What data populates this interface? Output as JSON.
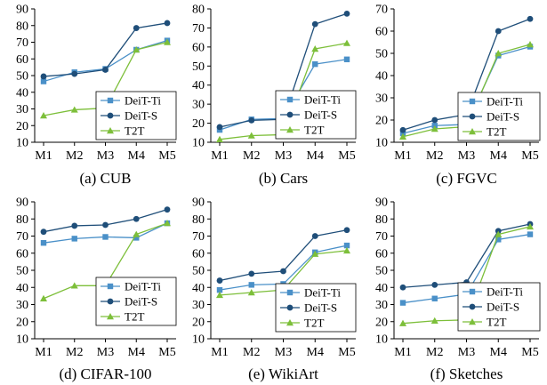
{
  "figure": {
    "panels_count": 6
  },
  "chart_data": [
    {
      "type": "line",
      "caption": "(a) CUB",
      "categories": [
        "M1",
        "M2",
        "M3",
        "M4",
        "M5"
      ],
      "ylim": [
        10,
        90
      ],
      "yticks": [
        10,
        20,
        30,
        40,
        50,
        60,
        70,
        80,
        90
      ],
      "legend": "bottom-right",
      "series": [
        {
          "name": "DeiT-Ti",
          "color": "#4a90c8",
          "marker": "square",
          "values": [
            46.5,
            52.0,
            54.0,
            65.5,
            71.0
          ]
        },
        {
          "name": "DeiT-S",
          "color": "#1f4e79",
          "marker": "circle",
          "values": [
            49.5,
            51.0,
            53.5,
            78.5,
            81.5
          ]
        },
        {
          "name": "T2T",
          "color": "#7dbf3a",
          "marker": "triangle",
          "values": [
            26.0,
            29.5,
            30.5,
            65.5,
            70.0
          ]
        }
      ]
    },
    {
      "type": "line",
      "caption": "(b) Cars",
      "categories": [
        "M1",
        "M2",
        "M3",
        "M4",
        "M5"
      ],
      "ylim": [
        10,
        80
      ],
      "yticks": [
        10,
        20,
        30,
        40,
        50,
        60,
        70,
        80
      ],
      "legend": "middle-right",
      "series": [
        {
          "name": "DeiT-Ti",
          "color": "#4a90c8",
          "marker": "square",
          "values": [
            16.5,
            22.0,
            22.5,
            51.0,
            53.5
          ]
        },
        {
          "name": "DeiT-S",
          "color": "#1f4e79",
          "marker": "circle",
          "values": [
            18.0,
            21.5,
            22.0,
            72.0,
            77.5
          ]
        },
        {
          "name": "T2T",
          "color": "#7dbf3a",
          "marker": "triangle",
          "values": [
            11.5,
            13.5,
            14.0,
            59.0,
            62.0
          ]
        }
      ]
    },
    {
      "type": "line",
      "caption": "(c) FGVC",
      "categories": [
        "M1",
        "M2",
        "M3",
        "M4",
        "M5"
      ],
      "ylim": [
        10,
        70
      ],
      "yticks": [
        10,
        20,
        30,
        40,
        50,
        60,
        70
      ],
      "legend": "bottom-right",
      "series": [
        {
          "name": "DeiT-Ti",
          "color": "#4a90c8",
          "marker": "square",
          "values": [
            14.0,
            17.5,
            18.0,
            49.0,
            53.0
          ]
        },
        {
          "name": "DeiT-S",
          "color": "#1f4e79",
          "marker": "circle",
          "values": [
            15.5,
            20.0,
            22.5,
            60.0,
            65.5
          ]
        },
        {
          "name": "T2T",
          "color": "#7dbf3a",
          "marker": "triangle",
          "values": [
            12.5,
            16.0,
            17.0,
            50.0,
            54.0
          ]
        }
      ]
    },
    {
      "type": "line",
      "caption": "(d) CIFAR-100",
      "categories": [
        "M1",
        "M2",
        "M3",
        "M4",
        "M5"
      ],
      "ylim": [
        10,
        90
      ],
      "yticks": [
        10,
        20,
        30,
        40,
        50,
        60,
        70,
        80,
        90
      ],
      "legend": "bottom-right",
      "series": [
        {
          "name": "DeiT-Ti",
          "color": "#4a90c8",
          "marker": "square",
          "values": [
            66.0,
            68.5,
            69.5,
            69.0,
            77.5
          ]
        },
        {
          "name": "DeiT-S",
          "color": "#1f4e79",
          "marker": "circle",
          "values": [
            72.5,
            76.0,
            76.5,
            80.0,
            85.5
          ]
        },
        {
          "name": "T2T",
          "color": "#7dbf3a",
          "marker": "triangle",
          "values": [
            33.5,
            41.0,
            41.0,
            71.0,
            77.5
          ]
        }
      ]
    },
    {
      "type": "line",
      "caption": "(e) WikiArt",
      "categories": [
        "M1",
        "M2",
        "M3",
        "M4",
        "M5"
      ],
      "ylim": [
        10,
        90
      ],
      "yticks": [
        10,
        20,
        30,
        40,
        50,
        60,
        70,
        80,
        90
      ],
      "legend": "bottom-right",
      "series": [
        {
          "name": "DeiT-Ti",
          "color": "#4a90c8",
          "marker": "square",
          "values": [
            38.5,
            41.5,
            42.0,
            60.5,
            64.5
          ]
        },
        {
          "name": "DeiT-S",
          "color": "#1f4e79",
          "marker": "circle",
          "values": [
            44.0,
            48.0,
            49.5,
            70.0,
            73.5
          ]
        },
        {
          "name": "T2T",
          "color": "#7dbf3a",
          "marker": "triangle",
          "values": [
            35.5,
            37.0,
            38.5,
            59.5,
            61.5
          ]
        }
      ]
    },
    {
      "type": "line",
      "caption": "(f) Sketches",
      "categories": [
        "M1",
        "M2",
        "M3",
        "M4",
        "M5"
      ],
      "ylim": [
        10,
        90
      ],
      "yticks": [
        10,
        20,
        30,
        40,
        50,
        60,
        70,
        80,
        90
      ],
      "legend": "bottom-right",
      "series": [
        {
          "name": "DeiT-Ti",
          "color": "#4a90c8",
          "marker": "square",
          "values": [
            31.0,
            33.5,
            36.0,
            68.0,
            71.0
          ]
        },
        {
          "name": "DeiT-S",
          "color": "#1f4e79",
          "marker": "circle",
          "values": [
            40.0,
            41.5,
            43.0,
            73.0,
            77.0
          ]
        },
        {
          "name": "T2T",
          "color": "#7dbf3a",
          "marker": "triangle",
          "values": [
            19.0,
            20.5,
            21.0,
            71.0,
            75.5
          ]
        }
      ]
    }
  ]
}
